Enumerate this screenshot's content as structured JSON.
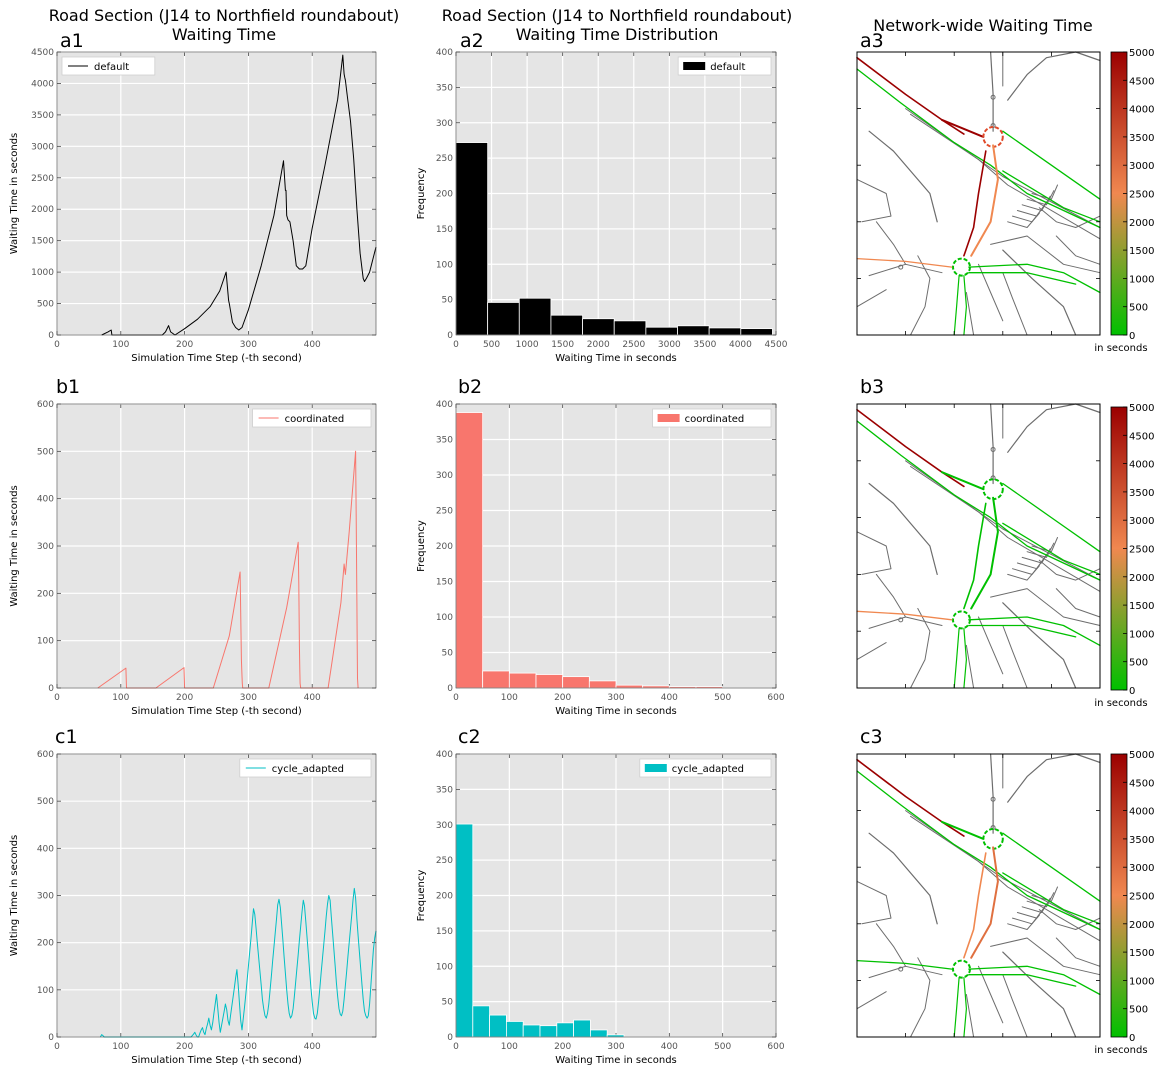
{
  "column_titles": {
    "col1_line1": "Road Section (J14 to Northfield roundabout)",
    "col1_line2": "Waiting Time",
    "col2_line1": "Road Section (J14 to Northfield roundabout)",
    "col2_line2": "Waiting Time Distribution",
    "col3": "Network-wide Waiting Time"
  },
  "colors": {
    "default": "#000000",
    "coordinated": "#f8766d",
    "cycle_adapted": "#00bfc4",
    "plot_bg": "#e5e5e5",
    "grid": "#ffffff",
    "road": "#6d6d6d",
    "low": "#00c000",
    "high": "#9b0000"
  },
  "colorbar": {
    "ticks": [
      "0",
      "500",
      "1000",
      "1500",
      "2000",
      "2500",
      "3000",
      "3500",
      "4000",
      "4500",
      "5000"
    ],
    "unit_label": "in seconds"
  },
  "chart_data": [
    {
      "id": "a1",
      "panel_label": "a1",
      "type": "line",
      "xlabel": "Simulation Time Step (-th second)",
      "ylabel": "Waiting Time in seconds",
      "xlim": [
        0,
        500
      ],
      "ylim": [
        0,
        4500
      ],
      "xticks": [
        "0",
        "100",
        "200",
        "300",
        "400"
      ],
      "yticks": [
        "0",
        "500",
        "1000",
        "1500",
        "2000",
        "2500",
        "3000",
        "3500",
        "4000",
        "4500"
      ],
      "series": [
        {
          "name": "default",
          "color": "#000000",
          "x": [
            70,
            80,
            85,
            86,
            165,
            170,
            175,
            178,
            185,
            200,
            220,
            240,
            255,
            265,
            269,
            270,
            275,
            280,
            285,
            290,
            300,
            320,
            340,
            355,
            358,
            359,
            360,
            362,
            365,
            370,
            375,
            380,
            385,
            390,
            400,
            420,
            440,
            448,
            450,
            451,
            452,
            455,
            460,
            465,
            470,
            475,
            480,
            482,
            485,
            490,
            495,
            500
          ],
          "y": [
            0,
            50,
            80,
            0,
            0,
            50,
            150,
            50,
            0,
            100,
            250,
            450,
            700,
            1000,
            550,
            500,
            200,
            120,
            80,
            120,
            400,
            1100,
            1900,
            2770,
            2300,
            2300,
            1900,
            1830,
            1800,
            1500,
            1100,
            1050,
            1050,
            1100,
            1700,
            2700,
            3750,
            4450,
            4150,
            4100,
            4050,
            3800,
            3400,
            2800,
            2000,
            1300,
            900,
            850,
            900,
            1000,
            1200,
            1400
          ]
        }
      ]
    },
    {
      "id": "a2",
      "panel_label": "a2",
      "type": "bar",
      "xlabel": "Waiting Time in seconds",
      "ylabel": "Frequency",
      "xlim": [
        0,
        4500
      ],
      "ylim": [
        0,
        400
      ],
      "xticks": [
        "0",
        "500",
        "1000",
        "1500",
        "2000",
        "2500",
        "3000",
        "3500",
        "4000",
        "4500"
      ],
      "yticks": [
        "0",
        "50",
        "100",
        "150",
        "200",
        "250",
        "300",
        "350",
        "400"
      ],
      "bin_edges": [
        0,
        445,
        890,
        1335,
        1780,
        2225,
        2670,
        3115,
        3560,
        4005,
        4450
      ],
      "series": [
        {
          "name": "default",
          "color": "#000000",
          "values": [
            272,
            46,
            52,
            28,
            23,
            20,
            11,
            13,
            10,
            9
          ]
        }
      ]
    },
    {
      "id": "b1",
      "panel_label": "b1",
      "type": "line",
      "xlabel": "Simulation Time Step (-th second)",
      "ylabel": "Waiting Time in seconds",
      "xlim": [
        0,
        500
      ],
      "ylim": [
        0,
        600
      ],
      "xticks": [
        "0",
        "100",
        "200",
        "300",
        "400"
      ],
      "yticks": [
        "0",
        "100",
        "200",
        "300",
        "400",
        "500",
        "600"
      ],
      "series": [
        {
          "name": "coordinated",
          "color": "#f8766d",
          "x": [
            64,
            108,
            109,
            155,
            199,
            200,
            245,
            270,
            287,
            288,
            289,
            290,
            290.5,
            291,
            292,
            332,
            360,
            378,
            379,
            380,
            380.5,
            381,
            382,
            425,
            445,
            450,
            452,
            458,
            468,
            469,
            470,
            470.5,
            471,
            472
          ],
          "y": [
            0,
            42,
            0,
            0,
            43,
            0,
            0,
            110,
            245,
            160,
            60,
            25,
            10,
            0,
            0,
            0,
            170,
            308,
            220,
            90,
            40,
            10,
            0,
            0,
            180,
            262,
            240,
            330,
            500,
            360,
            180,
            90,
            20,
            0
          ]
        }
      ]
    },
    {
      "id": "b2",
      "panel_label": "b2",
      "type": "bar",
      "xlabel": "Waiting Time in seconds",
      "ylabel": "Frequency",
      "xlim": [
        0,
        600
      ],
      "ylim": [
        0,
        400
      ],
      "xticks": [
        "0",
        "100",
        "200",
        "300",
        "400",
        "500",
        "600"
      ],
      "yticks": [
        "0",
        "50",
        "100",
        "150",
        "200",
        "250",
        "300",
        "350",
        "400"
      ],
      "bin_edges": [
        0,
        50,
        100,
        150,
        200,
        250,
        300,
        350,
        400,
        450,
        500
      ],
      "series": [
        {
          "name": "coordinated",
          "color": "#f8766d",
          "values": [
            388,
            24,
            21,
            19,
            16,
            10,
            4,
            3,
            2,
            2
          ]
        }
      ]
    },
    {
      "id": "c1",
      "panel_label": "c1",
      "type": "line",
      "xlabel": "Simulation Time Step (-th second)",
      "ylabel": "Waiting Time in seconds",
      "xlim": [
        0,
        500
      ],
      "ylim": [
        0,
        600
      ],
      "xticks": [
        "0",
        "100",
        "200",
        "300",
        "400"
      ],
      "yticks": [
        "0",
        "100",
        "200",
        "300",
        "400",
        "500",
        "600"
      ],
      "series": [
        {
          "name": "cycle_adapted",
          "color": "#00bfc4",
          "x": [
            68,
            70,
            72,
            74,
            210,
            212,
            214,
            216,
            218,
            220,
            222,
            224,
            226,
            228,
            230,
            232,
            234,
            236,
            238,
            240,
            242,
            244,
            246,
            248,
            250,
            252,
            254,
            256,
            258,
            260,
            262,
            264,
            266,
            268,
            270,
            272,
            274,
            276,
            278,
            280,
            282,
            284,
            286,
            288,
            290,
            292,
            294,
            296,
            298,
            300,
            302,
            304,
            306,
            308,
            310,
            312,
            314,
            316,
            318,
            320,
            322,
            324,
            326,
            328,
            330,
            332,
            334,
            336,
            338,
            340,
            342,
            344,
            346,
            348,
            350,
            352,
            354,
            356,
            358,
            360,
            362,
            364,
            366,
            368,
            370,
            372,
            374,
            376,
            378,
            380,
            382,
            384,
            386,
            388,
            390,
            392,
            394,
            396,
            398,
            400,
            402,
            404,
            406,
            408,
            410,
            412,
            414,
            416,
            418,
            420,
            422,
            424,
            426,
            428,
            430,
            432,
            434,
            436,
            438,
            440,
            442,
            444,
            446,
            448,
            450,
            452,
            454,
            456,
            458,
            460,
            462,
            464,
            466,
            468,
            470,
            472,
            474,
            476,
            478,
            480,
            482,
            484,
            486,
            488,
            490,
            492,
            494,
            496,
            498,
            500
          ],
          "y": [
            0,
            5,
            3,
            0,
            0,
            3,
            6,
            10,
            4,
            0,
            0,
            8,
            15,
            20,
            10,
            5,
            18,
            28,
            40,
            25,
            15,
            30,
            50,
            70,
            90,
            60,
            30,
            10,
            25,
            40,
            55,
            70,
            58,
            35,
            25,
            45,
            65,
            85,
            105,
            125,
            143,
            110,
            70,
            35,
            15,
            40,
            65,
            90,
            120,
            150,
            180,
            210,
            240,
            272,
            260,
            230,
            200,
            170,
            140,
            110,
            80,
            60,
            45,
            40,
            50,
            70,
            100,
            130,
            160,
            190,
            220,
            250,
            280,
            292,
            275,
            240,
            205,
            170,
            135,
            100,
            70,
            50,
            40,
            45,
            60,
            85,
            115,
            145,
            175,
            205,
            235,
            265,
            290,
            278,
            245,
            210,
            175,
            140,
            105,
            75,
            50,
            40,
            38,
            50,
            75,
            105,
            135,
            165,
            195,
            225,
            255,
            282,
            300,
            290,
            255,
            220,
            185,
            150,
            115,
            85,
            60,
            48,
            45,
            55,
            80,
            110,
            140,
            170,
            200,
            230,
            260,
            290,
            315,
            295,
            250,
            215,
            180,
            145,
            110,
            80,
            55,
            45,
            40,
            45,
            70,
            110,
            150,
            185,
            210,
            225
          ]
        }
      ]
    },
    {
      "id": "c2",
      "panel_label": "c2",
      "type": "bar",
      "xlabel": "Waiting Time in seconds",
      "ylabel": "Frequency",
      "xlim": [
        0,
        600
      ],
      "ylim": [
        0,
        400
      ],
      "xticks": [
        "0",
        "100",
        "200",
        "300",
        "400",
        "500",
        "600"
      ],
      "yticks": [
        "0",
        "50",
        "100",
        "150",
        "200",
        "250",
        "300",
        "350",
        "400"
      ],
      "bin_edges": [
        0,
        31.5,
        63,
        94.5,
        126,
        157.5,
        189,
        220.5,
        252,
        283.5,
        315
      ],
      "series": [
        {
          "name": "cycle_adapted",
          "color": "#00bfc4",
          "values": [
            301,
            44,
            31,
            22,
            17,
            16,
            20,
            24,
            10,
            3
          ]
        }
      ]
    }
  ],
  "maps": [
    {
      "id": "a3",
      "panel_label": "a3",
      "show_unit": true
    },
    {
      "id": "b3",
      "panel_label": "b3",
      "show_unit": true
    },
    {
      "id": "c3",
      "panel_label": "c3",
      "show_unit": true
    }
  ]
}
